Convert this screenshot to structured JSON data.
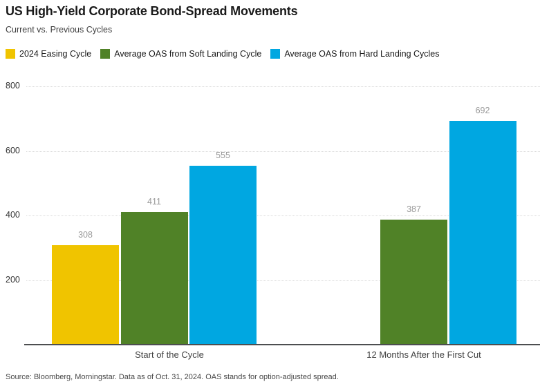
{
  "header": {
    "title": "US High-Yield Corporate Bond-Spread Movements",
    "subtitle": "Current vs. Previous Cycles"
  },
  "legend": [
    {
      "label": "2024 Easing Cycle",
      "color": "#f0c400"
    },
    {
      "label": "Average OAS from Soft Landing Cycle",
      "color": "#508227"
    },
    {
      "label": "Average OAS from Hard Landing Cycles",
      "color": "#00a7e1"
    }
  ],
  "chart_data": {
    "type": "bar",
    "title": "US High-Yield Corporate Bond-Spread Movements",
    "subtitle": "Current vs. Previous Cycles",
    "categories": [
      "Start of the Cycle",
      "12 Months After the First Cut"
    ],
    "series": [
      {
        "name": "2024 Easing Cycle",
        "color": "#f0c400",
        "values": [
          308,
          null
        ]
      },
      {
        "name": "Average OAS from Soft Landing Cycle",
        "color": "#508227",
        "values": [
          411,
          387
        ]
      },
      {
        "name": "Average OAS from Hard Landing Cycles",
        "color": "#00a7e1",
        "values": [
          555,
          692
        ]
      }
    ],
    "ylim": [
      0,
      800
    ],
    "yticks": [
      200,
      400,
      600,
      800
    ],
    "grid": "dotted-horizontal",
    "legend_position": "top",
    "value_labels": true
  },
  "footer": {
    "source": "Source: Bloomberg, Morningstar. Data as of Oct. 31, 2024. OAS stands for option-adjusted spread."
  }
}
